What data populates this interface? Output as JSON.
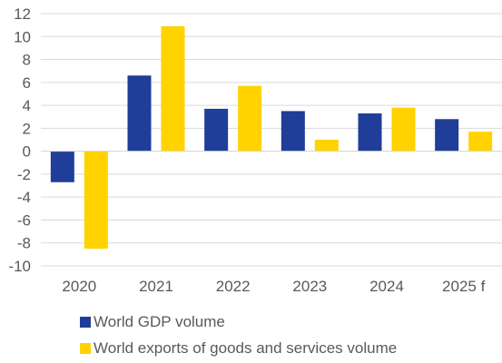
{
  "chart_data": {
    "type": "bar",
    "categories": [
      "2020",
      "2021",
      "2022",
      "2023",
      "2024",
      "2025 f"
    ],
    "series": [
      {
        "name": "World GDP volume",
        "color": "#1f3d99",
        "values": [
          -2.7,
          6.6,
          3.7,
          3.5,
          3.3,
          2.8
        ]
      },
      {
        "name": "World exports of goods and services volume",
        "color": "#ffd200",
        "values": [
          -8.5,
          10.9,
          5.7,
          1.0,
          3.8,
          1.7
        ]
      }
    ],
    "ylim": [
      -10,
      12
    ],
    "yticks": [
      12,
      10,
      8,
      6,
      4,
      2,
      0,
      -2,
      -4,
      -6,
      -8,
      -10
    ],
    "grid": true,
    "legend_position": "bottom",
    "title": "",
    "xlabel": "",
    "ylabel": ""
  }
}
